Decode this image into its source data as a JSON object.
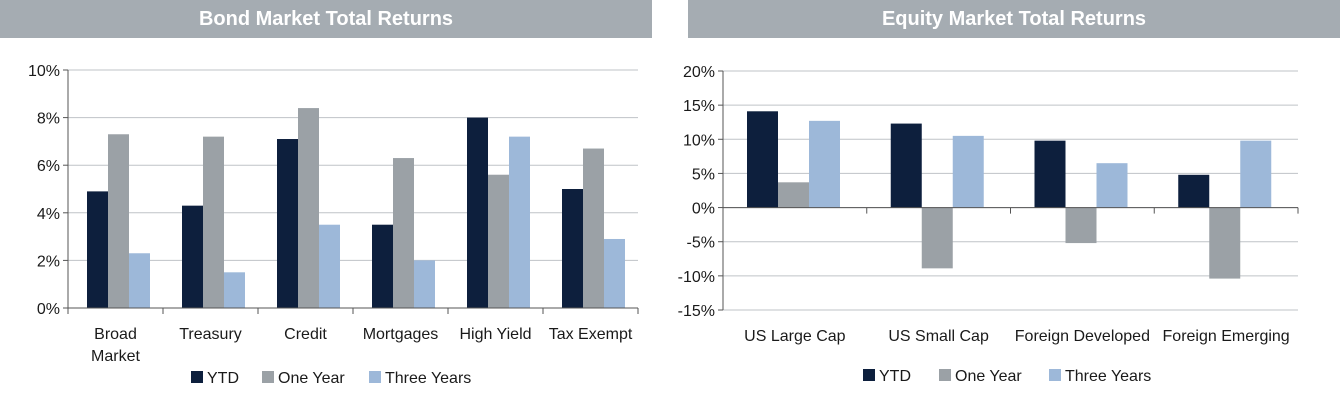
{
  "chart_data": [
    {
      "type": "bar",
      "title": "Bond Market Total Returns",
      "categories": [
        "Broad Market",
        "Treasury",
        "Credit",
        "Mortgages",
        "High Yield",
        "Tax Exempt"
      ],
      "y_ticks": [
        "10%",
        "8%",
        "6%",
        "4%",
        "2%",
        "0%"
      ],
      "ylim": [
        0,
        10
      ],
      "series": [
        {
          "name": "YTD",
          "color": "#0d1f3d",
          "values": [
            4.9,
            4.3,
            7.1,
            3.5,
            8.0,
            5.0
          ]
        },
        {
          "name": "One Year",
          "color": "#9ba1a6",
          "values": [
            7.3,
            7.2,
            8.4,
            6.3,
            5.6,
            6.7
          ]
        },
        {
          "name": "Three Years",
          "color": "#9db8d9",
          "values": [
            2.3,
            1.5,
            3.5,
            2.0,
            7.2,
            2.9
          ]
        }
      ],
      "legend": "bottom",
      "grid": "horizontal"
    },
    {
      "type": "bar",
      "title": "Equity Market Total Returns",
      "categories": [
        "US Large Cap",
        "US Small Cap",
        "Foreign Developed",
        "Foreign Emerging"
      ],
      "y_ticks": [
        "20%",
        "15%",
        "10%",
        "5%",
        "0%",
        "-5%",
        "-10%",
        "-15%"
      ],
      "ylim": [
        -15,
        20
      ],
      "series": [
        {
          "name": "YTD",
          "color": "#0d1f3d",
          "values": [
            14.1,
            12.3,
            9.8,
            4.8
          ]
        },
        {
          "name": "One Year",
          "color": "#9ba1a6",
          "values": [
            3.7,
            -8.9,
            -5.2,
            -10.4
          ]
        },
        {
          "name": "Three Years",
          "color": "#9db8d9",
          "values": [
            12.7,
            10.5,
            6.5,
            9.8
          ]
        }
      ],
      "legend": "bottom",
      "grid": "horizontal"
    }
  ]
}
